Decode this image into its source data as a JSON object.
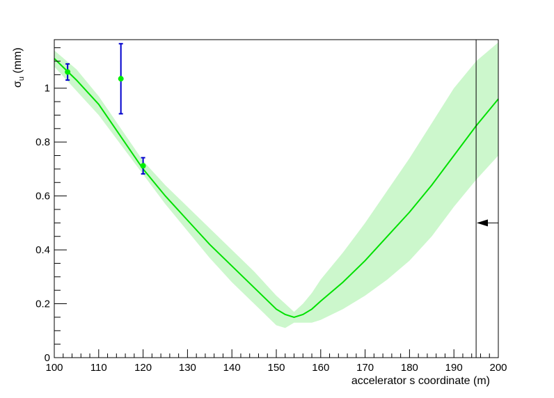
{
  "chart_data": {
    "type": "line",
    "title": "",
    "xlabel": "accelerator s coordinate (m)",
    "ylabel": {
      "symbol": "σ",
      "subscript": "u",
      "unit": " (mm)"
    },
    "xlim": [
      100,
      200
    ],
    "ylim": [
      0,
      1.18
    ],
    "x_ticks": [
      "100",
      "110",
      "120",
      "130",
      "140",
      "150",
      "160",
      "170",
      "180",
      "190",
      "200"
    ],
    "y_ticks": [
      "0",
      "0.2",
      "0.4",
      "0.6",
      "0.8",
      "1"
    ],
    "grid": false,
    "legend": "none",
    "colors": {
      "fit_line": "#00e000",
      "band": "#ccf7cc",
      "points": "#00ee00",
      "error_bars": "#0000cc",
      "marker": "#000000"
    },
    "series": [
      {
        "kind": "fit-curve",
        "x": [
          100,
          105,
          110,
          115,
          120,
          125,
          130,
          135,
          140,
          145,
          150,
          152,
          154,
          156,
          158,
          160,
          165,
          170,
          175,
          180,
          185,
          190,
          195,
          200
        ],
        "y": [
          1.11,
          1.03,
          0.94,
          0.82,
          0.7,
          0.6,
          0.51,
          0.42,
          0.34,
          0.26,
          0.18,
          0.16,
          0.15,
          0.16,
          0.18,
          0.21,
          0.28,
          0.36,
          0.45,
          0.54,
          0.64,
          0.75,
          0.86,
          0.96
        ],
        "upper": [
          1.14,
          1.07,
          0.97,
          0.85,
          0.73,
          0.64,
          0.56,
          0.48,
          0.4,
          0.32,
          0.23,
          0.2,
          0.17,
          0.2,
          0.24,
          0.29,
          0.39,
          0.5,
          0.62,
          0.74,
          0.87,
          1.0,
          1.1,
          1.17
        ],
        "lower": [
          1.08,
          0.99,
          0.9,
          0.79,
          0.68,
          0.57,
          0.47,
          0.37,
          0.28,
          0.2,
          0.12,
          0.11,
          0.13,
          0.13,
          0.13,
          0.14,
          0.18,
          0.23,
          0.29,
          0.36,
          0.45,
          0.56,
          0.66,
          0.75
        ]
      },
      {
        "kind": "measurements",
        "points": [
          {
            "x": 103.0,
            "y": 1.06,
            "err": 0.03
          },
          {
            "x": 115.0,
            "y": 1.035,
            "err": 0.13
          },
          {
            "x": 120.0,
            "y": 0.712,
            "err": 0.03
          }
        ]
      }
    ],
    "annotations": [
      {
        "kind": "vertical-line",
        "x": 195
      },
      {
        "kind": "arrow-left",
        "y": 0.5
      }
    ]
  }
}
